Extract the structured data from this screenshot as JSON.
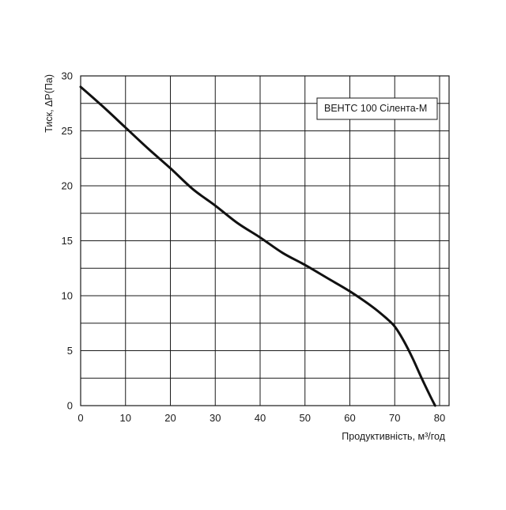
{
  "chart_data": {
    "type": "line",
    "title": "",
    "xlabel": "Продуктивність, м³/год",
    "ylabel": "Тиск, ΔP(Па)",
    "xlim": [
      0,
      80
    ],
    "ylim": [
      0,
      30
    ],
    "x_ticks": [
      "0",
      "10",
      "20",
      "30",
      "40",
      "50",
      "60",
      "70",
      "80"
    ],
    "y_ticks": [
      "0",
      "5",
      "10",
      "15",
      "20",
      "25",
      "30"
    ],
    "grid": true,
    "legend_position": "top-right",
    "series": [
      {
        "name": "ВЕНТС 100 Сілента-М",
        "color": "#111111",
        "x": [
          0,
          5,
          10,
          15,
          20,
          25,
          30,
          35,
          40,
          45,
          50,
          55,
          60,
          65,
          68,
          70,
          72,
          74,
          76,
          78,
          79
        ],
        "y": [
          29,
          27.2,
          25.3,
          23.4,
          21.6,
          19.7,
          18.2,
          16.6,
          15.3,
          13.9,
          12.8,
          11.6,
          10.4,
          9.0,
          8.0,
          7.2,
          5.9,
          4.3,
          2.5,
          0.8,
          0
        ]
      }
    ]
  }
}
